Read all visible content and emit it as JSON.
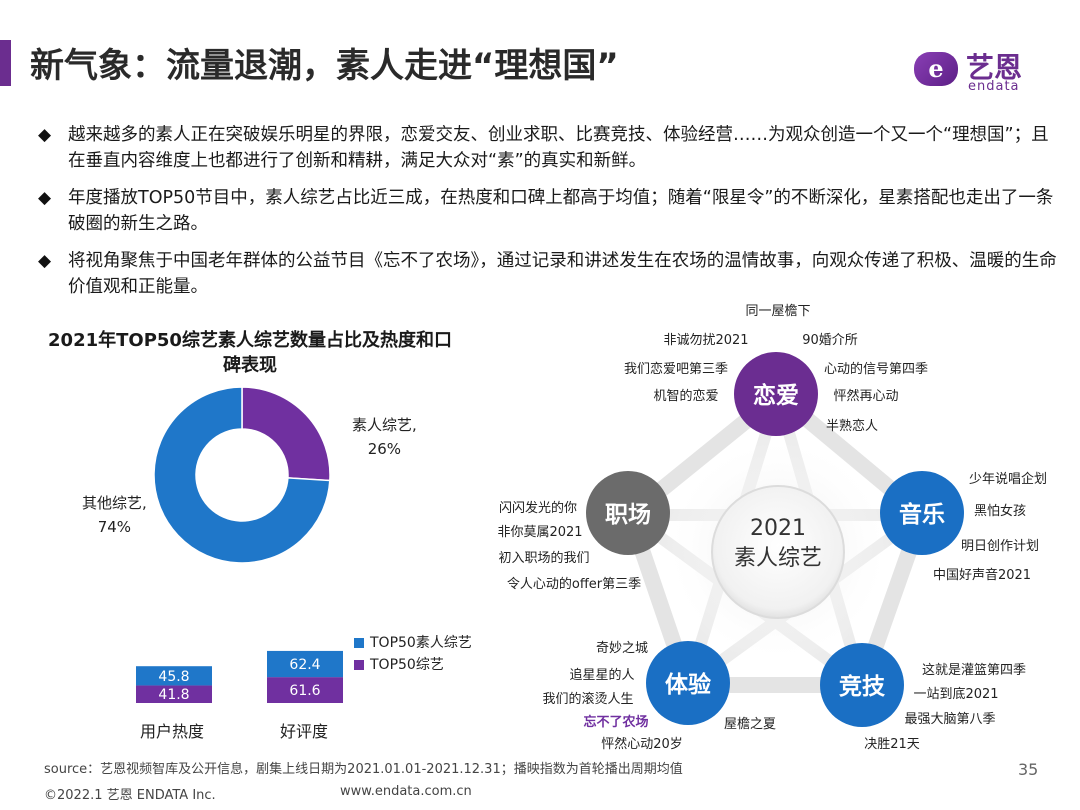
{
  "title": "新气象：流量退潮，素人走进“理想国”",
  "logo": {
    "mark": "e",
    "name_cn": "艺恩",
    "name_en": "endata"
  },
  "bullets": [
    "越来越多的素人正在突破娱乐明星的界限，恋爱交友、创业求职、比赛竞技、体验经营……为观众创造一个又一个“理想国”；且在垂直内容维度上也都进行了创新和精耕，满足大众对“素”的真实和新鲜。",
    "年度播放TOP50节目中，素人综艺占比近三成，在热度和口碑上都高于均值；随着“限星令”的不断深化，星素搭配也走出了一条破圈的新生之路。",
    "将视角聚焦于中国老年群体的公益节目《忘不了农场》，通过记录和讲述发生在农场的温情故事，向观众传递了积极、温暖的生命价值观和正能量。"
  ],
  "bullet_icon": "◆",
  "chart_data": [
    {
      "type": "pie",
      "title": "2021年TOP50综艺素人综艺数量占比及热度和口碑表现",
      "labels": [
        "素人综艺,",
        "其他综艺,"
      ],
      "value_labels": [
        "26%",
        "74%"
      ],
      "values": [
        26,
        74
      ],
      "colors": [
        "#7030a0",
        "#1f77c9"
      ]
    },
    {
      "type": "bar",
      "categories": [
        "用户热度",
        "好评度"
      ],
      "series": [
        {
          "name": "TOP50素人综艺",
          "values": [
            45.8,
            62.4
          ],
          "color": "#1f77c9"
        },
        {
          "name": "TOP50综艺",
          "values": [
            41.8,
            61.6
          ],
          "color": "#7030a0"
        }
      ],
      "stacked": true
    }
  ],
  "mindmap": {
    "center": [
      "2021",
      "素人综艺"
    ],
    "categories": [
      {
        "label": "恋爱",
        "color": "#6b2d91",
        "programs": [
          "同一屋檐下",
          "非诚勿扰2021",
          "90婚介所",
          "我们恋爱吧第三季",
          "心动的信号第四季",
          "机智的恋爱",
          "怦然再心动",
          "半熟恋人"
        ]
      },
      {
        "label": "音乐",
        "color": "#1a6fc4",
        "programs": [
          "少年说唱企划",
          "黑怕女孩",
          "明日创作计划",
          "中国好声音2021"
        ]
      },
      {
        "label": "竞技",
        "color": "#1a6fc4",
        "programs": [
          "这就是灌篮第四季",
          "一站到底2021",
          "最强大脑第八季",
          "决胜21天"
        ]
      },
      {
        "label": "体验",
        "color": "#1a6fc4",
        "programs": [
          "奇妙之城",
          "追星星的人",
          "我们的滚烫人生",
          "忘不了农场",
          "屋檐之夏",
          "怦然心动20岁"
        ]
      },
      {
        "label": "职场",
        "color": "#6b6b6b",
        "programs": [
          "闪闪发光的你",
          "非你莫属2021",
          "初入职场的我们",
          "令人心动的offer第三季"
        ]
      }
    ],
    "highlight_color": "#7030a0"
  },
  "footer": {
    "source": "source：艺恩视频智库及公开信息，剧集上线日期为2021.01.01-2021.12.31；播映指数为首轮播出周期均值",
    "copyright": "©2022.1 艺恩 ENDATA Inc.",
    "url": "www.endata.com.cn",
    "page": "35"
  }
}
